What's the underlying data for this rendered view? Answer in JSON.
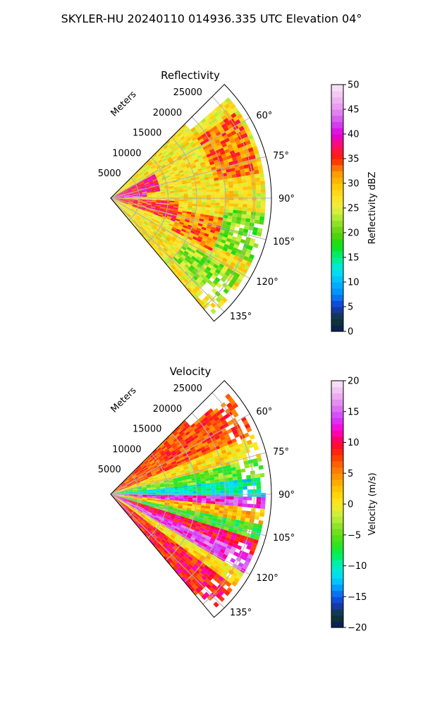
{
  "suptitle": "SKYLER-HU  20240110  014936.335 UTC Elevation 04°",
  "colors": {
    "grid": "#b0b0b0",
    "frame": "#000000",
    "background": "#ffffff"
  },
  "chart_data": [
    {
      "type": "heatmap",
      "projection": "polar-sector",
      "title": "Reflectivity",
      "range_label": "Meters",
      "range_ticks": [
        "5000",
        "10000",
        "15000",
        "20000",
        "25000"
      ],
      "range_max_m": 28000,
      "azimuth_range_deg": [
        45,
        140
      ],
      "azimuth_ticks": [
        "60°",
        "75°",
        "90°",
        "105°",
        "120°",
        "135°"
      ],
      "colorbar": {
        "label": "Reflectivity dBZ",
        "range": [
          0,
          50
        ],
        "ticks": [
          "0",
          "5",
          "10",
          "15",
          "20",
          "25",
          "30",
          "35",
          "40",
          "45",
          "50"
        ],
        "stops": [
          {
            "value": 0,
            "color": "#0a1a5c"
          },
          {
            "value": 2.5,
            "color": "#103a30"
          },
          {
            "value": 5,
            "color": "#1838c8"
          },
          {
            "value": 7.5,
            "color": "#0088ff"
          },
          {
            "value": 10,
            "color": "#00b8ff"
          },
          {
            "value": 12.5,
            "color": "#00e8f0"
          },
          {
            "value": 15,
            "color": "#00f080"
          },
          {
            "value": 17.5,
            "color": "#10e010"
          },
          {
            "value": 20,
            "color": "#60d010"
          },
          {
            "value": 22.5,
            "color": "#a0e830"
          },
          {
            "value": 25,
            "color": "#e8f040"
          },
          {
            "value": 27.5,
            "color": "#ffe020"
          },
          {
            "value": 30,
            "color": "#ffc000"
          },
          {
            "value": 32.5,
            "color": "#ff9000"
          },
          {
            "value": 35,
            "color": "#ff2000"
          },
          {
            "value": 37.5,
            "color": "#ff1060"
          },
          {
            "value": 40,
            "color": "#e000e0"
          },
          {
            "value": 42.5,
            "color": "#d050f0"
          },
          {
            "value": 45,
            "color": "#e890f0"
          },
          {
            "value": 47.5,
            "color": "#f0c0f0"
          },
          {
            "value": 50,
            "color": "#f8e8f8"
          }
        ]
      },
      "field_zones": [
        {
          "az": [
            45,
            140
          ],
          "r": [
            0,
            27000
          ],
          "value": 27
        },
        {
          "az": [
            62,
            82
          ],
          "r": [
            1000,
            9000
          ],
          "value": 37
        },
        {
          "az": [
            80,
            88
          ],
          "r": [
            0,
            6000
          ],
          "value": 41
        },
        {
          "az": [
            92,
            110
          ],
          "r": [
            1000,
            12000
          ],
          "value": 35
        },
        {
          "az": [
            100,
            118
          ],
          "r": [
            12000,
            20000
          ],
          "value": 33
        },
        {
          "az": [
            55,
            80
          ],
          "r": [
            18000,
            26000
          ],
          "value": 33
        },
        {
          "az": [
            95,
            115
          ],
          "r": [
            20000,
            27000
          ],
          "value": 21
        },
        {
          "az": [
            120,
            135
          ],
          "r": [
            15000,
            26000
          ],
          "value": 22
        }
      ]
    },
    {
      "type": "heatmap",
      "projection": "polar-sector",
      "title": "Velocity",
      "range_label": "Meters",
      "range_ticks": [
        "5000",
        "10000",
        "15000",
        "20000",
        "25000"
      ],
      "range_max_m": 28000,
      "azimuth_range_deg": [
        45,
        140
      ],
      "azimuth_ticks": [
        "60°",
        "75°",
        "90°",
        "105°",
        "120°",
        "135°"
      ],
      "colorbar": {
        "label": "Velocity (m/s)",
        "range": [
          -20,
          20
        ],
        "ticks": [
          "−20",
          "−15",
          "−10",
          "−5",
          "0",
          "5",
          "10",
          "15",
          "20"
        ],
        "stops": [
          {
            "value": -20,
            "color": "#0a1a5c"
          },
          {
            "value": -18,
            "color": "#103a30"
          },
          {
            "value": -16,
            "color": "#1838c8"
          },
          {
            "value": -14,
            "color": "#0088ff"
          },
          {
            "value": -12,
            "color": "#00d8ff"
          },
          {
            "value": -10,
            "color": "#00f0c0"
          },
          {
            "value": -8,
            "color": "#00f050"
          },
          {
            "value": -6,
            "color": "#40e010"
          },
          {
            "value": -4,
            "color": "#80e020"
          },
          {
            "value": -2,
            "color": "#c0f040"
          },
          {
            "value": 0,
            "color": "#ffe820"
          },
          {
            "value": 2,
            "color": "#ffd000"
          },
          {
            "value": 4,
            "color": "#ffa000"
          },
          {
            "value": 6,
            "color": "#ff7000"
          },
          {
            "value": 8,
            "color": "#ff3000"
          },
          {
            "value": 10,
            "color": "#ff0040"
          },
          {
            "value": 12,
            "color": "#ff00d0"
          },
          {
            "value": 14,
            "color": "#d040ff"
          },
          {
            "value": 16,
            "color": "#e080f0"
          },
          {
            "value": 18,
            "color": "#f0b8f0"
          },
          {
            "value": 20,
            "color": "#f8e8f8"
          }
        ]
      },
      "field_bands": [
        {
          "az": [
            45,
            68
          ],
          "value": 7
        },
        {
          "az": [
            68,
            76
          ],
          "value": 1
        },
        {
          "az": [
            76,
            84
          ],
          "value": -5
        },
        {
          "az": [
            84,
            91
          ],
          "value": -10
        },
        {
          "az": [
            91,
            96
          ],
          "value": 13
        },
        {
          "az": [
            96,
            102
          ],
          "value": 3
        },
        {
          "az": [
            102,
            108
          ],
          "value": -6
        },
        {
          "az": [
            108,
            114
          ],
          "value": 10
        },
        {
          "az": [
            114,
            120
          ],
          "value": 14
        },
        {
          "az": [
            120,
            126
          ],
          "value": 1
        },
        {
          "az": [
            126,
            140
          ],
          "value": 9
        }
      ]
    }
  ]
}
